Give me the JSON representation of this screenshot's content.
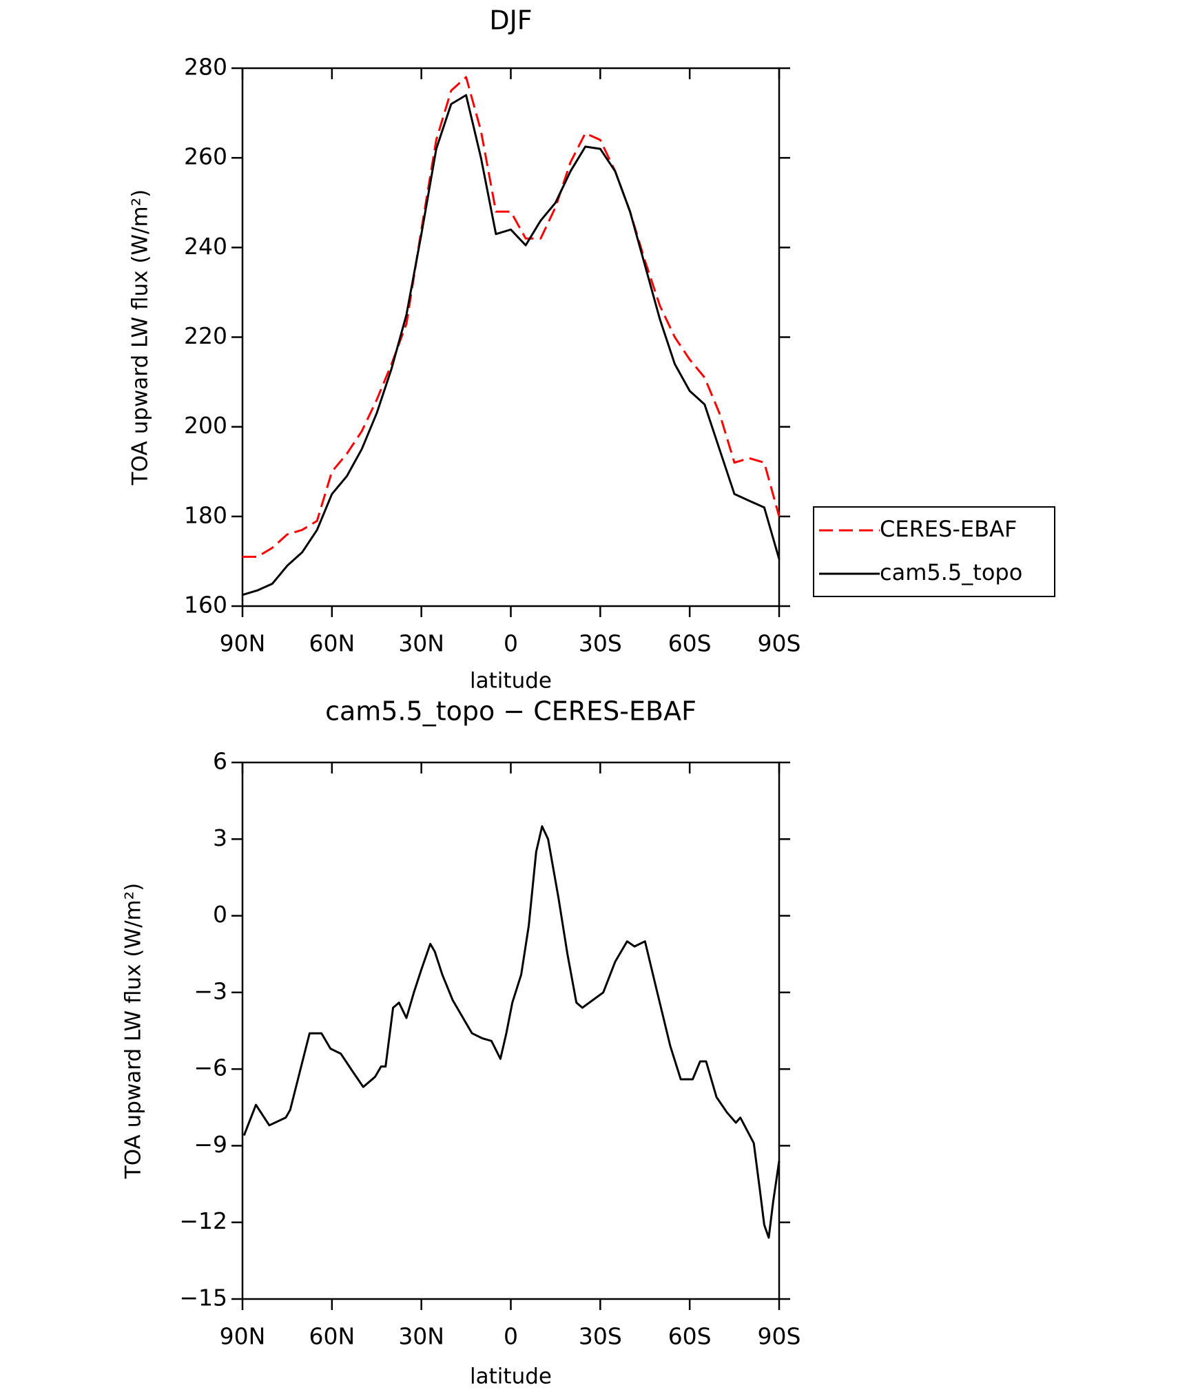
{
  "chart_data": [
    {
      "type": "line",
      "title": "DJF",
      "xlabel": "latitude",
      "ylabel": "TOA upward LW flux (W/m²)",
      "xlim": [
        90,
        -90
      ],
      "xticks": [
        {
          "value": 90,
          "label": "90N"
        },
        {
          "value": 60,
          "label": "60N"
        },
        {
          "value": 30,
          "label": "30N"
        },
        0,
        {
          "value": -30,
          "label": "30S"
        },
        {
          "value": -60,
          "label": "60S"
        },
        {
          "value": -90,
          "label": "90S"
        }
      ],
      "ylim": [
        160,
        280
      ],
      "yticks": [
        160,
        180,
        200,
        220,
        240,
        260,
        280
      ],
      "legend": "right",
      "series": [
        {
          "name": "CERES-EBAF",
          "color": "#ff0000",
          "style": "dashed",
          "x": [
            90,
            85,
            80,
            75,
            70,
            65,
            60,
            55,
            50,
            45,
            40,
            35,
            30,
            25,
            20,
            15,
            10,
            5,
            0,
            -5,
            -10,
            -15,
            -20,
            -25,
            -30,
            -35,
            -40,
            -45,
            -50,
            -55,
            -60,
            -65,
            -70,
            -75,
            -80,
            -85,
            -90
          ],
          "values": [
            171,
            171,
            173,
            176,
            177,
            179,
            190,
            194,
            199,
            206,
            214,
            223,
            244,
            264,
            275,
            278,
            266,
            248,
            248,
            242,
            242,
            249,
            259,
            265.5,
            264,
            257,
            248,
            237,
            227,
            220,
            215,
            211,
            203,
            192,
            193,
            192,
            180
          ]
        },
        {
          "name": "cam5.5_topo",
          "color": "#000000",
          "style": "solid",
          "x": [
            90,
            85,
            80,
            75,
            70,
            65,
            60,
            55,
            50,
            45,
            40,
            35,
            30,
            25,
            20,
            15,
            10,
            5,
            0,
            -5,
            -10,
            -15,
            -20,
            -25,
            -30,
            -35,
            -40,
            -45,
            -50,
            -55,
            -60,
            -65,
            -70,
            -75,
            -80,
            -85,
            -90
          ],
          "values": [
            162.5,
            163.5,
            165,
            169,
            172,
            177,
            185,
            189,
            195,
            203,
            213,
            225,
            243,
            262,
            272,
            274,
            260,
            243,
            244,
            240.5,
            246,
            250,
            257,
            262.5,
            262,
            257,
            248,
            236,
            224,
            214,
            208,
            205,
            195,
            185,
            183.5,
            182,
            170.5
          ]
        }
      ]
    },
    {
      "type": "line",
      "title": "cam5.5_topo − CERES-EBAF",
      "xlabel": "latitude",
      "ylabel": "TOA upward LW flux (W/m²)",
      "xlim": [
        90,
        -90
      ],
      "xticks": [
        {
          "value": 90,
          "label": "90N"
        },
        {
          "value": 60,
          "label": "60N"
        },
        {
          "value": 30,
          "label": "30N"
        },
        0,
        {
          "value": -30,
          "label": "30S"
        },
        {
          "value": -60,
          "label": "60S"
        },
        {
          "value": -90,
          "label": "90S"
        }
      ],
      "ylim": [
        -15,
        6
      ],
      "yticks": [
        {
          "value": -15,
          "label": "−15"
        },
        {
          "value": -12,
          "label": "−12"
        },
        {
          "value": -9,
          "label": "−9"
        },
        {
          "value": -6,
          "label": "−6"
        },
        {
          "value": -3,
          "label": "−3"
        },
        0,
        3,
        6
      ],
      "series": [
        {
          "color": "#000000",
          "style": "solid",
          "x": [
            89.5,
            85.5,
            81,
            75.5,
            74,
            67.5,
            63.5,
            60.5,
            57,
            53,
            49.5,
            45.5,
            43.5,
            42,
            39.5,
            37.5,
            35,
            32.5,
            30,
            27,
            25.5,
            23,
            19.5,
            15.5,
            13,
            9.5,
            6.5,
            3.5,
            1.5,
            -0.5,
            -3.5,
            -6,
            -8.5,
            -10.5,
            -12.5,
            -16,
            -19,
            -22,
            -24,
            -27.5,
            -31,
            -35,
            -39,
            -41.5,
            -45,
            -48.5,
            -53.5,
            -57,
            -61,
            -63.5,
            -65.5,
            -69,
            -72.5,
            -75.5,
            -77,
            -81.5,
            -83.5,
            -85,
            -86.5,
            -88,
            -90
          ],
          "values": [
            -8.6,
            -7.4,
            -8.2,
            -7.9,
            -7.6,
            -4.6,
            -4.6,
            -5.2,
            -5.4,
            -6.1,
            -6.7,
            -6.3,
            -5.9,
            -5.9,
            -3.6,
            -3.4,
            -4.0,
            -3.0,
            -2.1,
            -1.1,
            -1.4,
            -2.3,
            -3.3,
            -4.1,
            -4.6,
            -4.8,
            -4.9,
            -5.6,
            -4.6,
            -3.4,
            -2.3,
            -0.4,
            2.5,
            3.5,
            3.0,
            0.7,
            -1.5,
            -3.4,
            -3.6,
            -3.3,
            -3.0,
            -1.8,
            -1.0,
            -1.2,
            -1.0,
            -2.7,
            -5.1,
            -6.4,
            -6.4,
            -5.7,
            -5.7,
            -7.1,
            -7.7,
            -8.1,
            -7.9,
            -8.9,
            -10.7,
            -12.1,
            -12.6,
            -11.2,
            -9.6
          ]
        }
      ]
    }
  ]
}
